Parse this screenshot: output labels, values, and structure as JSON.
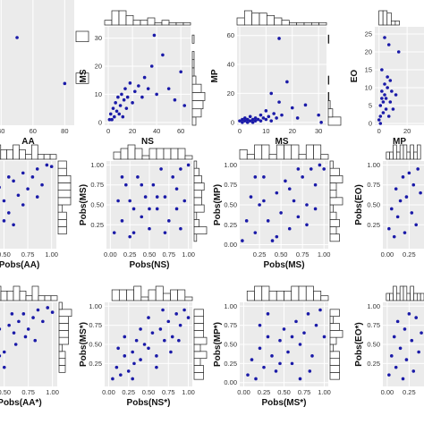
{
  "figure": {
    "colors": {
      "point": "#1a1aa8",
      "panel": "#ebebeb",
      "grid": "#ffffff",
      "hist_fill": "#ffffff",
      "hist_stroke": "#222222"
    }
  },
  "chart_data": [
    {
      "type": "scatter",
      "panel": "r1c1",
      "xlabel": "AA",
      "ylabel": "",
      "xticks": [
        "40",
        "60",
        "80"
      ],
      "yticks": [],
      "xlim": [
        28,
        86
      ],
      "ylim": [
        0,
        60
      ],
      "points": [
        [
          50,
          42
        ],
        [
          80,
          20
        ]
      ]
    },
    {
      "type": "scatter",
      "panel": "r1c2",
      "xlabel": "NS",
      "ylabel": "MS",
      "xticks": [
        "0",
        "20",
        "40",
        "60"
      ],
      "yticks": [
        "0",
        "10",
        "20",
        "30"
      ],
      "xlim": [
        -3,
        68
      ],
      "ylim": [
        -1,
        34
      ],
      "points": [
        [
          1,
          1
        ],
        [
          2,
          3
        ],
        [
          3,
          1
        ],
        [
          4,
          5
        ],
        [
          5,
          2
        ],
        [
          6,
          7
        ],
        [
          7,
          4
        ],
        [
          8,
          9
        ],
        [
          9,
          3
        ],
        [
          10,
          6
        ],
        [
          11,
          10
        ],
        [
          12,
          2
        ],
        [
          13,
          8
        ],
        [
          14,
          12
        ],
        [
          15,
          5
        ],
        [
          16,
          9
        ],
        [
          18,
          14
        ],
        [
          20,
          7
        ],
        [
          22,
          11
        ],
        [
          25,
          13
        ],
        [
          28,
          9
        ],
        [
          30,
          16
        ],
        [
          33,
          12
        ],
        [
          36,
          20
        ],
        [
          40,
          10
        ],
        [
          45,
          24
        ],
        [
          50,
          12
        ],
        [
          55,
          8
        ],
        [
          60,
          18
        ],
        [
          63,
          6
        ],
        [
          38,
          31
        ]
      ]
    },
    {
      "type": "scatter",
      "panel": "r1c3",
      "xlabel": "MS",
      "ylabel": "MP",
      "xticks": [
        "0",
        "10",
        "20",
        "30"
      ],
      "yticks": [
        "0",
        "20",
        "40",
        "60"
      ],
      "xlim": [
        -1,
        33
      ],
      "ylim": [
        -2,
        66
      ],
      "points": [
        [
          0,
          1
        ],
        [
          1,
          0
        ],
        [
          1,
          2
        ],
        [
          2,
          1
        ],
        [
          2,
          3
        ],
        [
          3,
          0
        ],
        [
          3,
          2
        ],
        [
          4,
          1
        ],
        [
          4,
          4
        ],
        [
          5,
          2
        ],
        [
          5,
          0
        ],
        [
          6,
          3
        ],
        [
          6,
          1
        ],
        [
          7,
          2
        ],
        [
          8,
          5
        ],
        [
          8,
          1
        ],
        [
          9,
          3
        ],
        [
          10,
          2
        ],
        [
          10,
          8
        ],
        [
          11,
          4
        ],
        [
          12,
          1
        ],
        [
          12,
          20
        ],
        [
          13,
          6
        ],
        [
          14,
          3
        ],
        [
          15,
          14
        ],
        [
          16,
          5
        ],
        [
          18,
          28
        ],
        [
          20,
          10
        ],
        [
          22,
          3
        ],
        [
          25,
          12
        ],
        [
          30,
          5
        ],
        [
          31,
          0
        ],
        [
          15,
          58
        ]
      ]
    },
    {
      "type": "scatter",
      "panel": "r1c4",
      "xlabel": "MP",
      "ylabel": "EO",
      "xticks": [
        "0",
        "20"
      ],
      "yticks": [
        "0",
        "5",
        "10",
        "15",
        "20",
        "25"
      ],
      "xlim": [
        -3,
        32
      ],
      "ylim": [
        -0.5,
        27
      ],
      "points": [
        [
          0,
          1
        ],
        [
          1,
          2
        ],
        [
          1,
          5
        ],
        [
          2,
          7
        ],
        [
          2,
          9
        ],
        [
          3,
          3
        ],
        [
          3,
          6
        ],
        [
          4,
          8
        ],
        [
          4,
          11
        ],
        [
          5,
          4
        ],
        [
          5,
          7
        ],
        [
          6,
          10
        ],
        [
          6,
          13
        ],
        [
          7,
          2
        ],
        [
          8,
          6
        ],
        [
          9,
          9
        ],
        [
          10,
          4
        ],
        [
          12,
          8
        ],
        [
          14,
          20
        ],
        [
          2,
          15
        ],
        [
          4,
          24
        ],
        [
          7,
          22
        ],
        [
          8,
          12
        ],
        [
          1,
          0
        ]
      ]
    },
    {
      "type": "scatter",
      "panel": "r2c1",
      "xlabel": "Pobs(AA)",
      "ylabel": "",
      "xticks": [
        "0.50",
        "0.75",
        "1.00"
      ],
      "yticks": [],
      "xlim": [
        0.27,
        1.05
      ],
      "ylim": [
        -0.05,
        1.05
      ],
      "points": [
        [
          0.32,
          0.35
        ],
        [
          0.35,
          0.6
        ],
        [
          0.4,
          0.45
        ],
        [
          0.45,
          0.72
        ],
        [
          0.5,
          0.55
        ],
        [
          0.55,
          0.4
        ],
        [
          0.6,
          0.8
        ],
        [
          0.65,
          0.62
        ],
        [
          0.7,
          0.9
        ],
        [
          0.75,
          0.7
        ],
        [
          0.8,
          0.85
        ],
        [
          0.85,
          0.95
        ],
        [
          0.9,
          0.75
        ],
        [
          0.95,
          1.0
        ],
        [
          1.0,
          0.98
        ],
        [
          0.4,
          0.2
        ],
        [
          0.3,
          0.15
        ],
        [
          0.5,
          0.3
        ],
        [
          0.6,
          0.25
        ],
        [
          0.3,
          0.5
        ],
        [
          0.7,
          0.5
        ],
        [
          0.85,
          0.6
        ],
        [
          0.55,
          0.85
        ]
      ]
    },
    {
      "type": "scatter",
      "panel": "r2c2",
      "xlabel": "Pobs(NS)",
      "ylabel": "Pobs(MS)",
      "xticks": [
        "0.00",
        "0.25",
        "0.50",
        "0.75",
        "1.00"
      ],
      "yticks": [
        "0.25",
        "0.50",
        "0.75",
        "1.00"
      ],
      "xlim": [
        -0.05,
        1.05
      ],
      "ylim": [
        -0.05,
        1.05
      ],
      "points": [
        [
          0.05,
          0.15
        ],
        [
          0.1,
          0.55
        ],
        [
          0.15,
          0.3
        ],
        [
          0.2,
          0.75
        ],
        [
          0.25,
          0.1
        ],
        [
          0.3,
          0.45
        ],
        [
          0.35,
          0.85
        ],
        [
          0.4,
          0.35
        ],
        [
          0.45,
          0.6
        ],
        [
          0.5,
          0.2
        ],
        [
          0.55,
          0.75
        ],
        [
          0.6,
          0.45
        ],
        [
          0.65,
          0.95
        ],
        [
          0.7,
          0.6
        ],
        [
          0.75,
          0.3
        ],
        [
          0.8,
          0.85
        ],
        [
          0.85,
          0.7
        ],
        [
          0.9,
          0.95
        ],
        [
          0.95,
          0.55
        ],
        [
          1.0,
          1.0
        ],
        [
          0.3,
          0.15
        ],
        [
          0.7,
          0.15
        ],
        [
          0.5,
          0.45
        ],
        [
          0.6,
          0.6
        ],
        [
          0.85,
          0.45
        ],
        [
          0.15,
          0.85
        ],
        [
          0.9,
          0.2
        ],
        [
          0.4,
          0.75
        ],
        [
          0.25,
          0.55
        ]
      ]
    },
    {
      "type": "scatter",
      "panel": "r2c3",
      "xlabel": "Pobs(MS)",
      "ylabel": "Pobs(MP)",
      "xticks": [
        "0.25",
        "0.50",
        "0.75",
        "1.00"
      ],
      "yticks": [
        "0.00",
        "0.25",
        "0.50",
        "0.75",
        "1.00"
      ],
      "xlim": [
        0.02,
        1.05
      ],
      "ylim": [
        -0.05,
        1.05
      ],
      "points": [
        [
          0.05,
          0.05
        ],
        [
          0.1,
          0.3
        ],
        [
          0.15,
          0.6
        ],
        [
          0.2,
          0.15
        ],
        [
          0.25,
          0.5
        ],
        [
          0.3,
          0.85
        ],
        [
          0.35,
          0.3
        ],
        [
          0.4,
          0.05
        ],
        [
          0.45,
          0.65
        ],
        [
          0.5,
          0.4
        ],
        [
          0.55,
          0.8
        ],
        [
          0.6,
          0.2
        ],
        [
          0.65,
          0.55
        ],
        [
          0.7,
          0.35
        ],
        [
          0.75,
          0.85
        ],
        [
          0.8,
          0.5
        ],
        [
          0.85,
          0.95
        ],
        [
          0.9,
          0.75
        ],
        [
          0.95,
          1.0
        ],
        [
          1.0,
          0.95
        ],
        [
          0.3,
          0.55
        ],
        [
          0.6,
          0.7
        ],
        [
          0.8,
          0.25
        ],
        [
          0.45,
          0.1
        ],
        [
          0.2,
          0.85
        ],
        [
          0.9,
          0.45
        ],
        [
          0.7,
          0.95
        ]
      ]
    },
    {
      "type": "scatter",
      "panel": "r2c4",
      "xlabel": "",
      "ylabel": "Pobs(EO)",
      "xticks": [
        "0.00",
        "0.25"
      ],
      "yticks": [
        "0.25",
        "0.50",
        "0.75",
        "1.00"
      ],
      "xlim": [
        -0.05,
        0.42
      ],
      "ylim": [
        -0.05,
        1.05
      ],
      "points": [
        [
          0.02,
          0.2
        ],
        [
          0.05,
          0.45
        ],
        [
          0.08,
          0.1
        ],
        [
          0.1,
          0.7
        ],
        [
          0.12,
          0.35
        ],
        [
          0.15,
          0.55
        ],
        [
          0.18,
          0.85
        ],
        [
          0.2,
          0.15
        ],
        [
          0.22,
          0.6
        ],
        [
          0.25,
          0.9
        ],
        [
          0.28,
          0.4
        ],
        [
          0.3,
          0.75
        ],
        [
          0.33,
          0.25
        ],
        [
          0.35,
          0.95
        ],
        [
          0.38,
          0.65
        ]
      ]
    },
    {
      "type": "scatter",
      "panel": "r3c1",
      "xlabel": "Pobs(AA*)",
      "ylabel": "",
      "xticks": [
        "0.50",
        "0.75",
        "1.00"
      ],
      "yticks": [],
      "xlim": [
        0.27,
        1.05
      ],
      "ylim": [
        -0.05,
        1.05
      ],
      "points": [
        [
          0.3,
          0.25
        ],
        [
          0.32,
          0.45
        ],
        [
          0.35,
          0.6
        ],
        [
          0.38,
          0.3
        ],
        [
          0.4,
          0.55
        ],
        [
          0.45,
          0.7
        ],
        [
          0.5,
          0.4
        ],
        [
          0.55,
          0.75
        ],
        [
          0.6,
          0.65
        ],
        [
          0.65,
          0.8
        ],
        [
          0.7,
          0.9
        ],
        [
          0.75,
          0.7
        ],
        [
          0.8,
          0.85
        ],
        [
          0.85,
          0.95
        ],
        [
          0.9,
          0.8
        ],
        [
          0.95,
          0.98
        ],
        [
          1.0,
          0.92
        ],
        [
          0.35,
          0.15
        ],
        [
          0.5,
          0.2
        ],
        [
          0.62,
          0.5
        ],
        [
          0.72,
          0.6
        ],
        [
          0.45,
          0.35
        ],
        [
          0.58,
          0.9
        ],
        [
          0.82,
          0.55
        ]
      ]
    },
    {
      "type": "scatter",
      "panel": "r3c2",
      "xlabel": "Pobs(NS*)",
      "ylabel": "Pobs(MS*)",
      "xticks": [
        "0.00",
        "0.25",
        "0.50",
        "0.75",
        "1.00"
      ],
      "yticks": [
        "0.25",
        "0.50",
        "0.75",
        "1.00"
      ],
      "xlim": [
        -0.05,
        1.05
      ],
      "ylim": [
        -0.05,
        1.05
      ],
      "points": [
        [
          0.05,
          0.05
        ],
        [
          0.1,
          0.2
        ],
        [
          0.15,
          0.1
        ],
        [
          0.2,
          0.35
        ],
        [
          0.25,
          0.15
        ],
        [
          0.3,
          0.4
        ],
        [
          0.32,
          0.25
        ],
        [
          0.35,
          0.55
        ],
        [
          0.4,
          0.3
        ],
        [
          0.45,
          0.5
        ],
        [
          0.5,
          0.45
        ],
        [
          0.55,
          0.65
        ],
        [
          0.6,
          0.35
        ],
        [
          0.65,
          0.7
        ],
        [
          0.7,
          0.55
        ],
        [
          0.75,
          0.8
        ],
        [
          0.8,
          0.6
        ],
        [
          0.85,
          0.9
        ],
        [
          0.9,
          0.75
        ],
        [
          0.95,
          0.95
        ],
        [
          1.0,
          0.85
        ],
        [
          0.4,
          0.7
        ],
        [
          0.6,
          0.2
        ],
        [
          0.2,
          0.6
        ],
        [
          0.78,
          0.4
        ],
        [
          0.5,
          0.85
        ],
        [
          0.12,
          0.45
        ],
        [
          0.88,
          0.55
        ],
        [
          0.3,
          0.05
        ],
        [
          0.68,
          0.95
        ]
      ]
    },
    {
      "type": "scatter",
      "panel": "r3c3",
      "xlabel": "Pobs(MS*)",
      "ylabel": "Pobs(MP*)",
      "xticks": [
        "0.00",
        "0.25",
        "0.50",
        "0.75",
        "1.00"
      ],
      "yticks": [
        "0.00",
        "0.25",
        "0.50",
        "0.75",
        "1.00"
      ],
      "xlim": [
        -0.05,
        1.05
      ],
      "ylim": [
        -0.05,
        1.05
      ],
      "points": [
        [
          0.05,
          0.1
        ],
        [
          0.1,
          0.3
        ],
        [
          0.15,
          0.05
        ],
        [
          0.2,
          0.45
        ],
        [
          0.25,
          0.2
        ],
        [
          0.3,
          0.6
        ],
        [
          0.35,
          0.35
        ],
        [
          0.4,
          0.15
        ],
        [
          0.45,
          0.55
        ],
        [
          0.5,
          0.7
        ],
        [
          0.55,
          0.4
        ],
        [
          0.6,
          0.25
        ],
        [
          0.65,
          0.8
        ],
        [
          0.7,
          0.5
        ],
        [
          0.75,
          0.65
        ],
        [
          0.8,
          0.9
        ],
        [
          0.85,
          0.35
        ],
        [
          0.9,
          0.75
        ],
        [
          0.95,
          0.95
        ],
        [
          1.0,
          0.6
        ],
        [
          0.3,
          0.9
        ],
        [
          0.6,
          0.6
        ],
        [
          0.45,
          0.25
        ],
        [
          0.82,
          0.15
        ],
        [
          0.2,
          0.75
        ],
        [
          0.7,
          0.05
        ]
      ]
    },
    {
      "type": "scatter",
      "panel": "r3c4",
      "xlabel": "",
      "ylabel": "Pobs(EO*)",
      "xticks": [
        "0.00",
        "0.25"
      ],
      "yticks": [
        "0.25",
        "0.50",
        "0.75",
        "1.00"
      ],
      "xlim": [
        -0.05,
        0.42
      ],
      "ylim": [
        -0.05,
        1.05
      ],
      "points": [
        [
          0.02,
          0.1
        ],
        [
          0.05,
          0.35
        ],
        [
          0.08,
          0.6
        ],
        [
          0.1,
          0.2
        ],
        [
          0.12,
          0.8
        ],
        [
          0.15,
          0.45
        ],
        [
          0.18,
          0.05
        ],
        [
          0.2,
          0.7
        ],
        [
          0.22,
          0.3
        ],
        [
          0.25,
          0.9
        ],
        [
          0.28,
          0.55
        ],
        [
          0.3,
          0.15
        ],
        [
          0.33,
          0.85
        ],
        [
          0.36,
          0.4
        ],
        [
          0.39,
          0.65
        ]
      ]
    }
  ]
}
